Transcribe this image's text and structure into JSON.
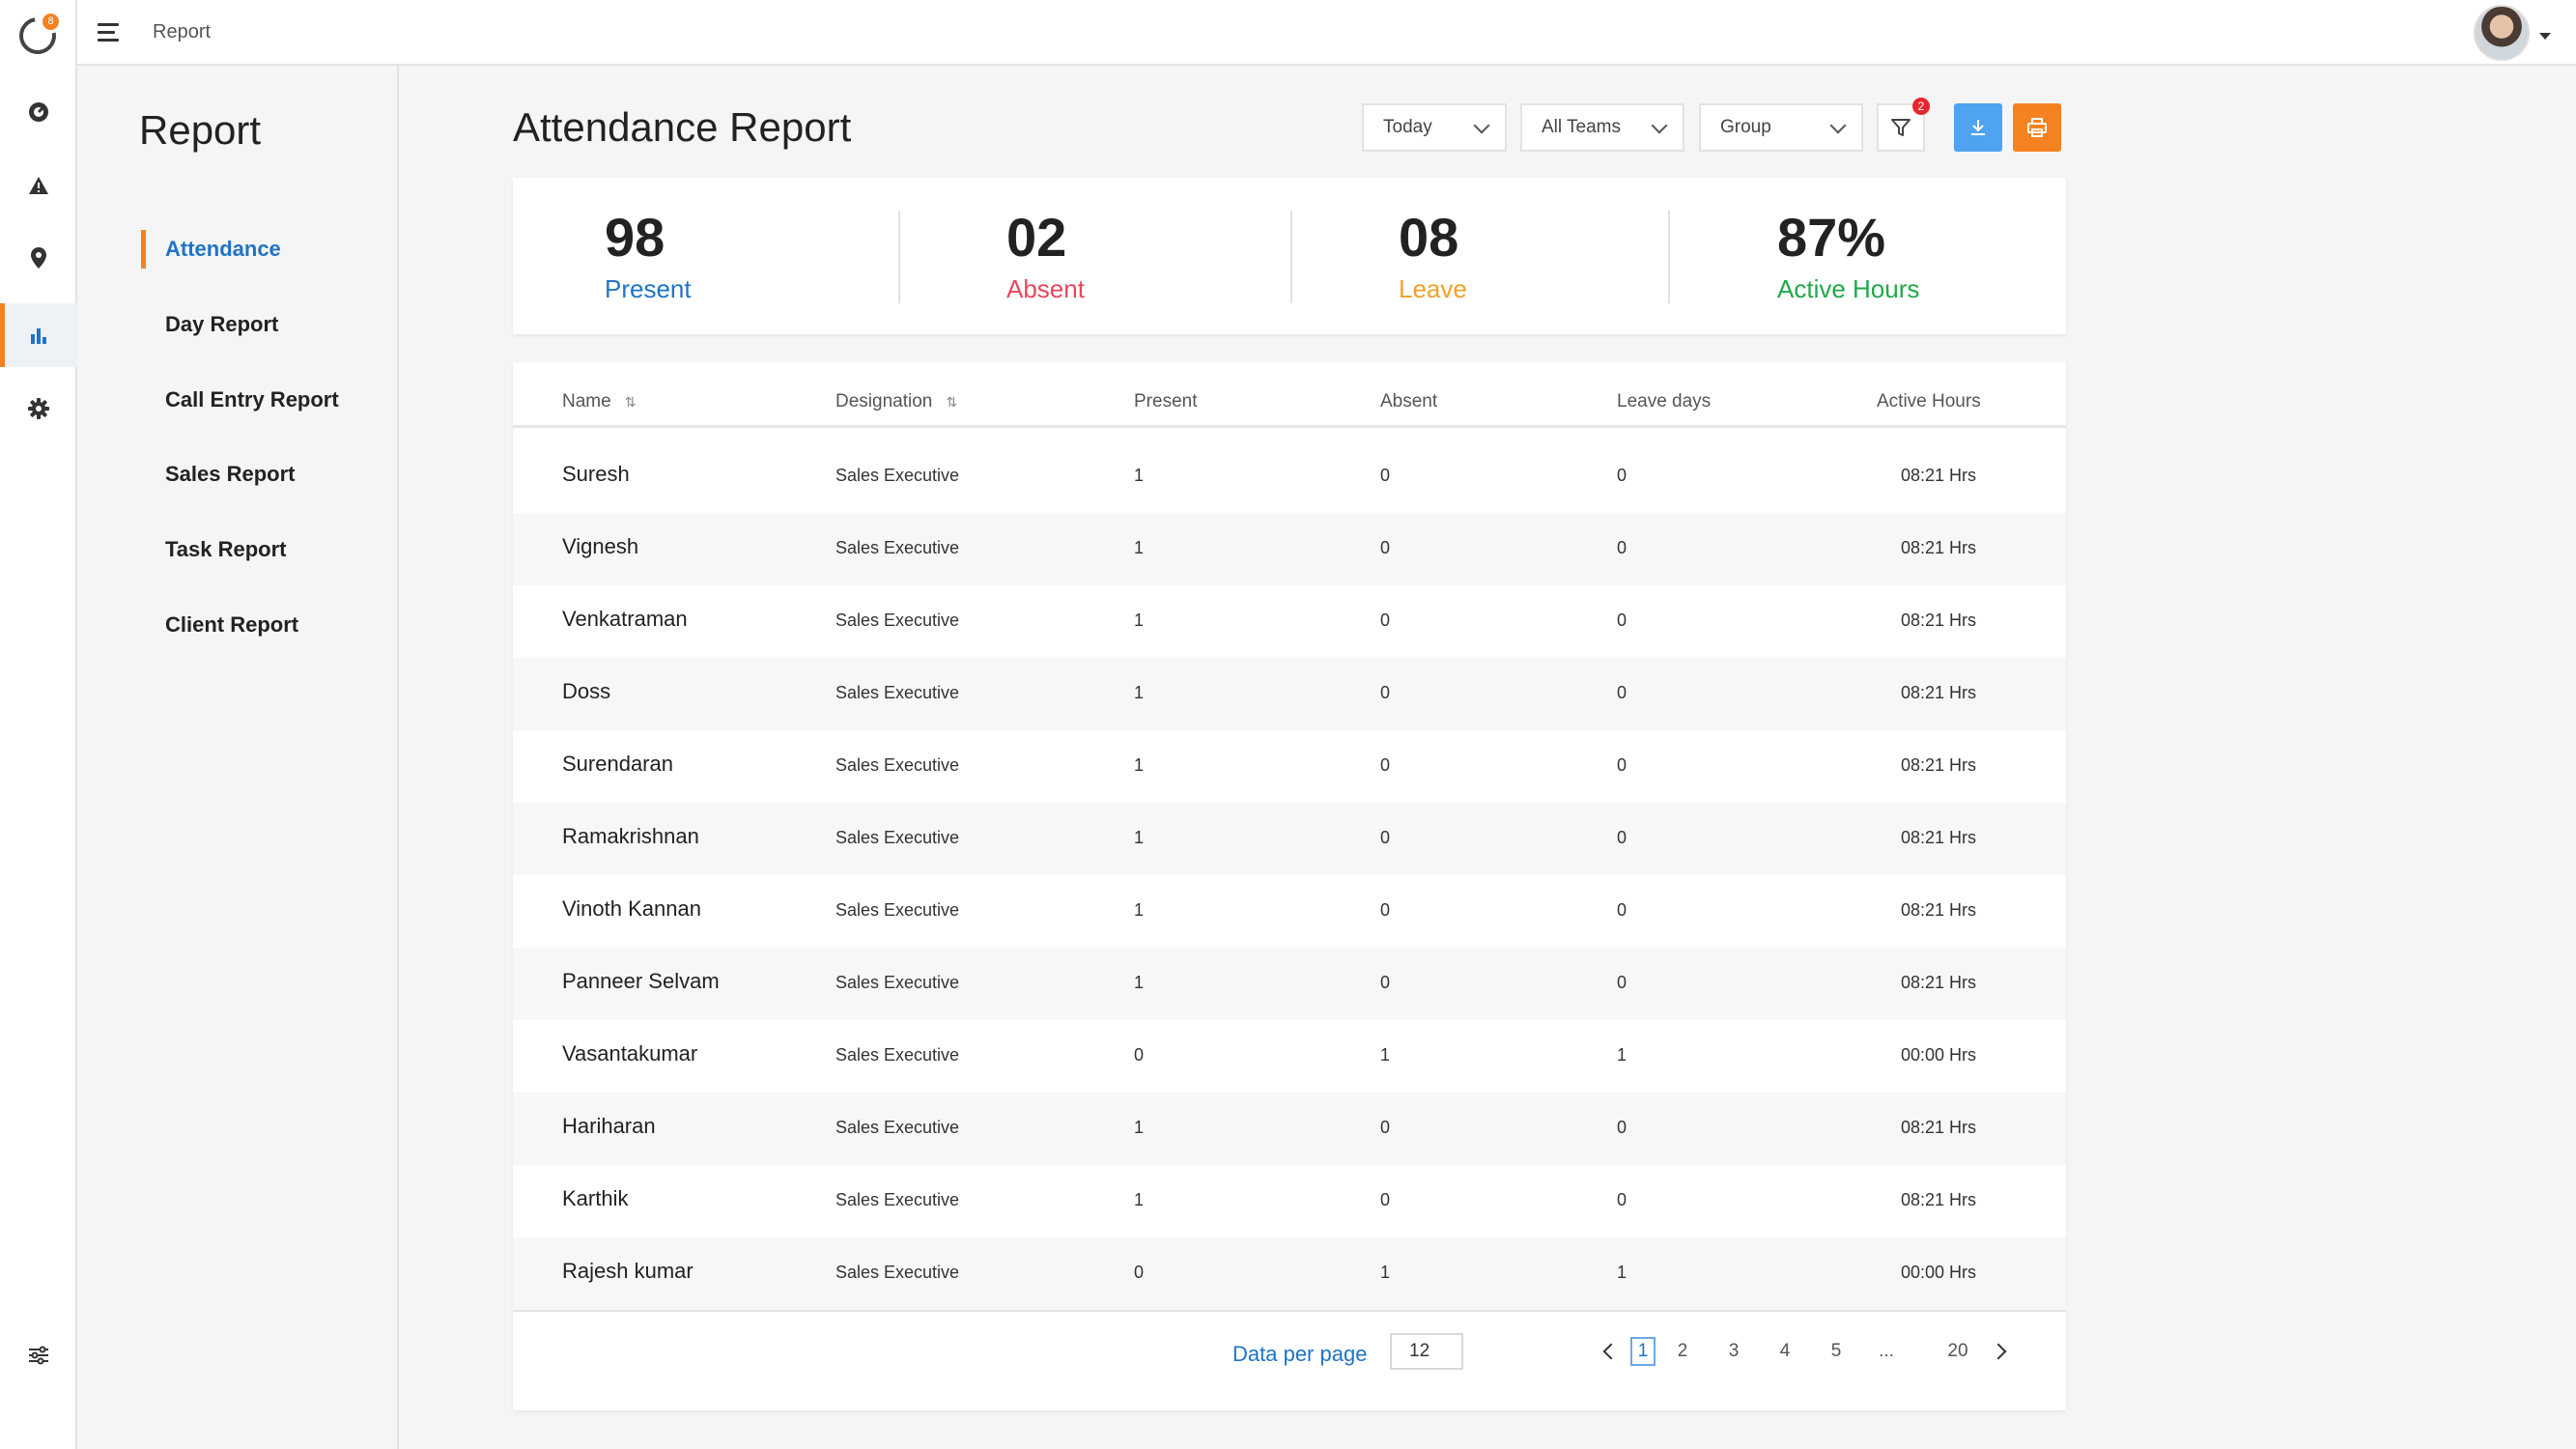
{
  "topbar": {
    "breadcrumb": "Report"
  },
  "app": {
    "logo_badge": "8"
  },
  "sidebar": {
    "rail": [
      {
        "icon": "dashboard-icon"
      },
      {
        "icon": "warning-icon"
      },
      {
        "icon": "location-pin-icon"
      },
      {
        "icon": "bar-chart-icon",
        "active": true
      },
      {
        "icon": "gear-icon"
      },
      {
        "icon": "sliders-icon"
      }
    ]
  },
  "subnav": {
    "title": "Report",
    "items": [
      {
        "label": "Attendance",
        "active": true
      },
      {
        "label": "Day Report"
      },
      {
        "label": "Call Entry Report"
      },
      {
        "label": "Sales Report"
      },
      {
        "label": "Task Report"
      },
      {
        "label": "Client Report"
      }
    ]
  },
  "header": {
    "title": "Attendance Report",
    "filters": {
      "period": "Today",
      "teams": "All Teams",
      "group": "Group"
    },
    "filter_badge": "2"
  },
  "stats": [
    {
      "value": "98",
      "label": "Present",
      "color": "#1f74c6"
    },
    {
      "value": "02",
      "label": "Absent",
      "color": "#e8475c"
    },
    {
      "value": "08",
      "label": "Leave",
      "color": "#f0a12b"
    },
    {
      "value": "87%",
      "label": "Active Hours",
      "color": "#22a74a"
    }
  ],
  "table": {
    "columns": [
      "Name",
      "Designation",
      "Present",
      "Absent",
      "Leave days",
      "Active Hours"
    ],
    "rows": [
      [
        "Suresh",
        "Sales Executive",
        "1",
        "0",
        "0",
        "08:21 Hrs"
      ],
      [
        "Vignesh",
        "Sales Executive",
        "1",
        "0",
        "0",
        "08:21 Hrs"
      ],
      [
        "Venkatraman",
        "Sales Executive",
        "1",
        "0",
        "0",
        "08:21 Hrs"
      ],
      [
        "Doss",
        "Sales Executive",
        "1",
        "0",
        "0",
        "08:21 Hrs"
      ],
      [
        "Surendaran",
        "Sales Executive",
        "1",
        "0",
        "0",
        "08:21 Hrs"
      ],
      [
        "Ramakrishnan",
        "Sales Executive",
        "1",
        "0",
        "0",
        "08:21 Hrs"
      ],
      [
        "Vinoth Kannan",
        "Sales Executive",
        "1",
        "0",
        "0",
        "08:21 Hrs"
      ],
      [
        "Panneer Selvam",
        "Sales Executive",
        "1",
        "0",
        "0",
        "08:21 Hrs"
      ],
      [
        "Vasantakumar",
        "Sales Executive",
        "0",
        "1",
        "1",
        "00:00 Hrs"
      ],
      [
        "Hariharan",
        "Sales Executive",
        "1",
        "0",
        "0",
        "08:21 Hrs"
      ],
      [
        "Karthik",
        "Sales Executive",
        "1",
        "0",
        "0",
        "08:21 Hrs"
      ],
      [
        "Rajesh kumar",
        "Sales Executive",
        "0",
        "1",
        "1",
        "00:00 Hrs"
      ]
    ]
  },
  "pagination": {
    "data_per_page_label": "Data per page",
    "data_per_page": "12",
    "pages": [
      "1",
      "2",
      "3",
      "4",
      "5",
      "...",
      "20"
    ],
    "current": "1"
  }
}
